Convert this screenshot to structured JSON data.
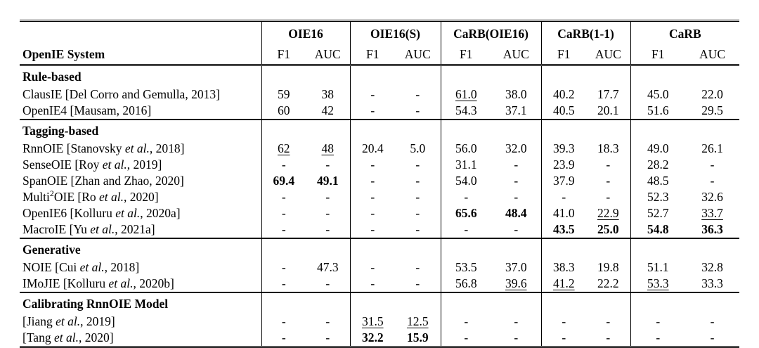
{
  "page": {
    "background_color": "#ffffff",
    "text_color": "#000000",
    "rule_color": "#000000"
  },
  "table": {
    "first_col_header": "OpenIE System",
    "groups": [
      {
        "label": "OIE16"
      },
      {
        "label": "OIE16(S)"
      },
      {
        "label": "CaRB(OIE16)"
      },
      {
        "label": "CaRB(1-1)"
      },
      {
        "label": "CaRB"
      }
    ],
    "sub_headers": [
      "F1",
      "AUC"
    ],
    "sections": [
      {
        "title": "Rule-based",
        "rows": [
          {
            "system": [
              {
                "t": "ClausIE [Del Corro and Gemulla, 2013]",
                "s": "p"
              }
            ],
            "cells": [
              {
                "t": "59"
              },
              {
                "t": "38"
              },
              {
                "t": "-"
              },
              {
                "t": "-"
              },
              {
                "t": "61.0",
                "s": "u"
              },
              {
                "t": "38.0"
              },
              {
                "t": "40.2"
              },
              {
                "t": "17.7"
              },
              {
                "t": "45.0"
              },
              {
                "t": "22.0"
              }
            ]
          },
          {
            "system": [
              {
                "t": "OpenIE4 [Mausam, 2016]",
                "s": "p"
              }
            ],
            "cells": [
              {
                "t": "60"
              },
              {
                "t": "42"
              },
              {
                "t": "-"
              },
              {
                "t": "-"
              },
              {
                "t": "54.3"
              },
              {
                "t": "37.1"
              },
              {
                "t": "40.5"
              },
              {
                "t": "20.1"
              },
              {
                "t": "51.6"
              },
              {
                "t": "29.5"
              }
            ]
          }
        ]
      },
      {
        "title": "Tagging-based",
        "rows": [
          {
            "system": [
              {
                "t": "RnnOIE [Stanovsky ",
                "s": "p"
              },
              {
                "t": "et al.",
                "s": "i"
              },
              {
                "t": ", 2018]",
                "s": "p"
              }
            ],
            "cells": [
              {
                "t": "62",
                "s": "u"
              },
              {
                "t": "48",
                "s": "u"
              },
              {
                "t": "20.4"
              },
              {
                "t": "5.0"
              },
              {
                "t": "56.0"
              },
              {
                "t": "32.0"
              },
              {
                "t": "39.3"
              },
              {
                "t": "18.3"
              },
              {
                "t": "49.0"
              },
              {
                "t": "26.1"
              }
            ]
          },
          {
            "system": [
              {
                "t": "SenseOIE [Roy ",
                "s": "p"
              },
              {
                "t": "et al.",
                "s": "i"
              },
              {
                "t": ", 2019]",
                "s": "p"
              }
            ],
            "cells": [
              {
                "t": "-"
              },
              {
                "t": "-"
              },
              {
                "t": "-"
              },
              {
                "t": "-"
              },
              {
                "t": "31.1"
              },
              {
                "t": "-"
              },
              {
                "t": "23.9"
              },
              {
                "t": "-"
              },
              {
                "t": "28.2"
              },
              {
                "t": "-"
              }
            ]
          },
          {
            "system": [
              {
                "t": "SpanOIE [Zhan and Zhao, 2020]",
                "s": "p"
              }
            ],
            "cells": [
              {
                "t": "69.4",
                "s": "b"
              },
              {
                "t": "49.1",
                "s": "b"
              },
              {
                "t": "-"
              },
              {
                "t": "-"
              },
              {
                "t": "54.0"
              },
              {
                "t": "-"
              },
              {
                "t": "37.9"
              },
              {
                "t": "-"
              },
              {
                "t": "48.5"
              },
              {
                "t": "-"
              }
            ]
          },
          {
            "system": [
              {
                "t": "Multi",
                "s": "p"
              },
              {
                "t": "2",
                "s": "sup"
              },
              {
                "t": "OIE [Ro ",
                "s": "p"
              },
              {
                "t": "et al.",
                "s": "i"
              },
              {
                "t": ", 2020]",
                "s": "p"
              }
            ],
            "cells": [
              {
                "t": "-"
              },
              {
                "t": "-"
              },
              {
                "t": "-"
              },
              {
                "t": "-"
              },
              {
                "t": "-"
              },
              {
                "t": "-"
              },
              {
                "t": "-"
              },
              {
                "t": "-"
              },
              {
                "t": "52.3"
              },
              {
                "t": "32.6"
              }
            ]
          },
          {
            "system": [
              {
                "t": "OpenIE6 [Kolluru ",
                "s": "p"
              },
              {
                "t": "et al.",
                "s": "i"
              },
              {
                "t": ", 2020a]",
                "s": "p"
              }
            ],
            "cells": [
              {
                "t": "-"
              },
              {
                "t": "-"
              },
              {
                "t": "-"
              },
              {
                "t": "-"
              },
              {
                "t": "65.6",
                "s": "b"
              },
              {
                "t": "48.4",
                "s": "b"
              },
              {
                "t": "41.0"
              },
              {
                "t": "22.9",
                "s": "u"
              },
              {
                "t": "52.7"
              },
              {
                "t": "33.7",
                "s": "u"
              }
            ]
          },
          {
            "system": [
              {
                "t": "MacroIE [Yu ",
                "s": "p"
              },
              {
                "t": "et al.",
                "s": "i"
              },
              {
                "t": ", 2021a]",
                "s": "p"
              }
            ],
            "cells": [
              {
                "t": "-"
              },
              {
                "t": "-"
              },
              {
                "t": "-"
              },
              {
                "t": "-"
              },
              {
                "t": "-"
              },
              {
                "t": "-"
              },
              {
                "t": "43.5",
                "s": "b"
              },
              {
                "t": "25.0",
                "s": "b"
              },
              {
                "t": "54.8",
                "s": "b"
              },
              {
                "t": "36.3",
                "s": "b"
              }
            ]
          }
        ]
      },
      {
        "title": "Generative",
        "rows": [
          {
            "system": [
              {
                "t": "NOIE [Cui ",
                "s": "p"
              },
              {
                "t": "et al.",
                "s": "i"
              },
              {
                "t": ", 2018]",
                "s": "p"
              }
            ],
            "cells": [
              {
                "t": "-"
              },
              {
                "t": "47.3"
              },
              {
                "t": "-"
              },
              {
                "t": "-"
              },
              {
                "t": "53.5"
              },
              {
                "t": "37.0"
              },
              {
                "t": "38.3"
              },
              {
                "t": "19.8"
              },
              {
                "t": "51.1"
              },
              {
                "t": "32.8"
              }
            ]
          },
          {
            "system": [
              {
                "t": "IMoJIE [Kolluru ",
                "s": "p"
              },
              {
                "t": "et al.",
                "s": "i"
              },
              {
                "t": ", 2020b]",
                "s": "p"
              }
            ],
            "cells": [
              {
                "t": "-"
              },
              {
                "t": "-"
              },
              {
                "t": "-"
              },
              {
                "t": "-"
              },
              {
                "t": "56.8"
              },
              {
                "t": "39.6",
                "s": "u"
              },
              {
                "t": "41.2",
                "s": "u"
              },
              {
                "t": "22.2"
              },
              {
                "t": "53.3",
                "s": "u"
              },
              {
                "t": "33.3"
              }
            ]
          }
        ]
      },
      {
        "title": "Calibrating RnnOIE Model",
        "rows": [
          {
            "system": [
              {
                "t": "[Jiang ",
                "s": "p"
              },
              {
                "t": "et al.",
                "s": "i"
              },
              {
                "t": ", 2019]",
                "s": "p"
              }
            ],
            "cells": [
              {
                "t": "-"
              },
              {
                "t": "-"
              },
              {
                "t": "31.5",
                "s": "u"
              },
              {
                "t": "12.5",
                "s": "u"
              },
              {
                "t": "-"
              },
              {
                "t": "-"
              },
              {
                "t": "-"
              },
              {
                "t": "-"
              },
              {
                "t": "-"
              },
              {
                "t": "-"
              }
            ]
          },
          {
            "system": [
              {
                "t": "[Tang ",
                "s": "p"
              },
              {
                "t": "et al.",
                "s": "i"
              },
              {
                "t": ", 2020]",
                "s": "p"
              }
            ],
            "cells": [
              {
                "t": "-"
              },
              {
                "t": "-"
              },
              {
                "t": "32.2",
                "s": "b"
              },
              {
                "t": "15.9",
                "s": "b"
              },
              {
                "t": "-"
              },
              {
                "t": "-"
              },
              {
                "t": "-"
              },
              {
                "t": "-"
              },
              {
                "t": "-"
              },
              {
                "t": "-"
              }
            ]
          }
        ]
      }
    ]
  }
}
